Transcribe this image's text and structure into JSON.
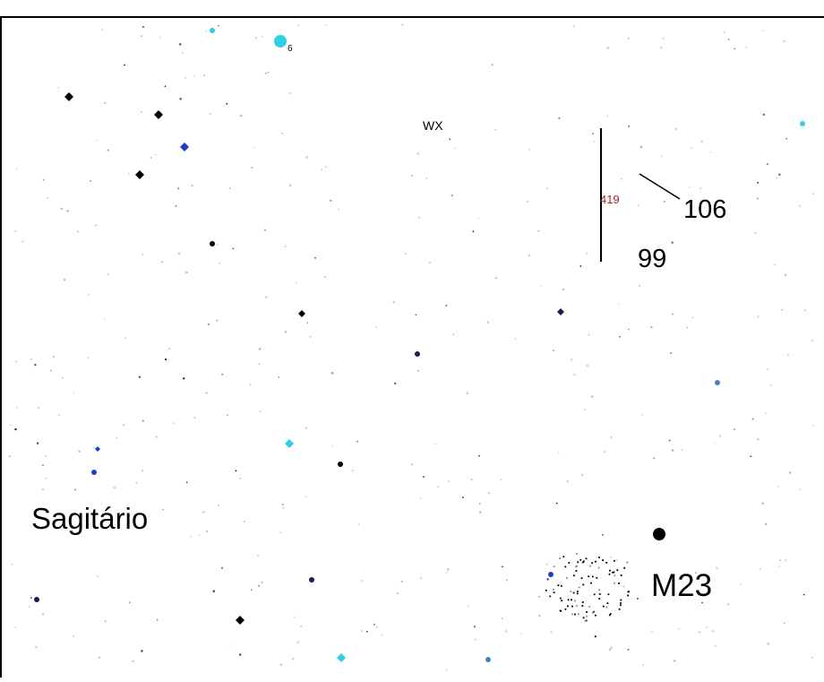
{
  "map": {
    "labels": {
      "constellation": "Sagitário",
      "star_wx": "WX",
      "mag_6": "6",
      "mag_419": "419",
      "mag_106": "106",
      "mag_99": "99",
      "cluster_m23": "M23"
    },
    "colors": {
      "background": "#ffffff",
      "frame": "#000000",
      "star_black": "#000000",
      "star_navy": "#1b1b57",
      "star_blue": "#1f3fbf",
      "star_mid_blue": "#3f86c8",
      "star_cyan": "#2fd0e6",
      "faint_cyan": "#5fc8d8",
      "faint_gray": "#8a8a8a",
      "variable_label": "#b22222"
    },
    "icons": {
      "bright_star": "bright-star-icon",
      "faint_star": "faint-star-icon",
      "cluster": "open-cluster-icon"
    }
  }
}
